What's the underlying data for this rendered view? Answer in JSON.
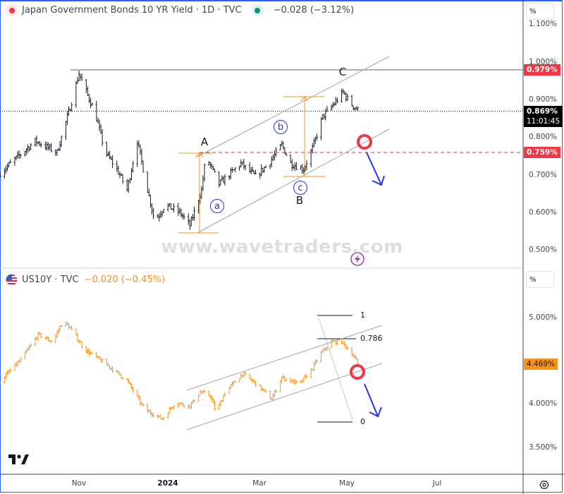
{
  "header": {
    "title": "Japan Government Bonds 10 YR Yield · 1D · TVC",
    "change": "−0.028 (−3.12%)",
    "status_dot_color": "#f23645",
    "market_dot_color": "#089981"
  },
  "lower_header": {
    "title": "US10Y · TVC",
    "change": "−0.020 (−0.45%)",
    "change_color": "#f7931a",
    "icon": "us-flag-icon"
  },
  "price_scale_mode": "%",
  "top_axis": {
    "ticks": [
      "1.100%",
      "1.000%",
      "0.900%",
      "0.800%",
      "0.700%",
      "0.600%",
      "0.500%"
    ],
    "labels": {
      "resistance": "0.979%",
      "last": "0.869%",
      "countdown": "11:01:45",
      "level": "0.759%"
    }
  },
  "bottom_axis": {
    "ticks": [
      "5.000%",
      "4.000%",
      "3.500%"
    ],
    "last": "4.469%"
  },
  "x_axis": {
    "ticks": [
      "Nov",
      "2024",
      "Mar",
      "May",
      "Jul"
    ]
  },
  "annotations": {
    "wave_labels": {
      "A": "A",
      "B": "B",
      "C": "C"
    },
    "sub_waves": {
      "a": "a",
      "b": "b",
      "c": "c"
    },
    "fib": {
      "one": "1",
      "level": "0.786",
      "zero": "0"
    },
    "watermark": "www.wavetraders.com"
  },
  "colors": {
    "accent_orange": "#f7931a",
    "alert_red": "#f23645",
    "arrow_blue": "#2633f5",
    "channel_gray": "#a3a6af"
  },
  "chart_data": [
    {
      "type": "ohlc",
      "title": "Japan Government Bonds 10 YR Yield · 1D · TVC",
      "y_unit": "%",
      "ylim": [
        0.46,
        1.11
      ],
      "anchors": [
        [
          "2023-09-08",
          0.705
        ],
        [
          "2023-10-02",
          0.79
        ],
        [
          "2023-10-17",
          0.76
        ],
        [
          "2023-10-26",
          0.88
        ],
        [
          "2023-11-01",
          0.97
        ],
        [
          "2023-11-05",
          0.93
        ],
        [
          "2023-11-12",
          0.865
        ],
        [
          "2023-11-19",
          0.76
        ],
        [
          "2023-11-27",
          0.715
        ],
        [
          "2023-12-04",
          0.66
        ],
        [
          "2023-12-11",
          0.79
        ],
        [
          "2023-12-18",
          0.66
        ],
        [
          "2023-12-23",
          0.575
        ],
        [
          "2023-12-30",
          0.62
        ],
        [
          "2024-01-09",
          0.6
        ],
        [
          "2024-01-16",
          0.565
        ],
        [
          "2024-01-24",
          0.66
        ],
        [
          "2024-01-27",
          0.75
        ],
        [
          "2024-02-05",
          0.675
        ],
        [
          "2024-02-20",
          0.73
        ],
        [
          "2024-03-01",
          0.695
        ],
        [
          "2024-03-10",
          0.73
        ],
        [
          "2024-03-19",
          0.78
        ],
        [
          "2024-03-25",
          0.73
        ],
        [
          "2024-04-03",
          0.715
        ],
        [
          "2024-04-09",
          0.77
        ],
        [
          "2024-04-16",
          0.855
        ],
        [
          "2024-04-23",
          0.885
        ],
        [
          "2024-04-30",
          0.92
        ],
        [
          "2024-05-05",
          0.89
        ],
        [
          "2024-05-11",
          0.869
        ]
      ]
    },
    {
      "type": "ohlc",
      "title": "US10Y · TVC",
      "y_unit": "%",
      "ylim": [
        3.35,
        5.55
      ],
      "anchors": [
        [
          "2023-09-08",
          4.27
        ],
        [
          "2023-09-22",
          4.51
        ],
        [
          "2023-10-04",
          4.8
        ],
        [
          "2023-10-14",
          4.72
        ],
        [
          "2023-10-21",
          4.96
        ],
        [
          "2023-10-26",
          4.88
        ],
        [
          "2023-11-05",
          4.63
        ],
        [
          "2023-11-19",
          4.47
        ],
        [
          "2023-12-04",
          4.27
        ],
        [
          "2023-12-16",
          3.94
        ],
        [
          "2023-12-28",
          3.83
        ],
        [
          "2024-01-06",
          4.02
        ],
        [
          "2024-01-16",
          3.98
        ],
        [
          "2024-01-23",
          4.14
        ],
        [
          "2024-01-30",
          4.1
        ],
        [
          "2024-02-03",
          3.9
        ],
        [
          "2024-02-09",
          4.14
        ],
        [
          "2024-02-21",
          4.35
        ],
        [
          "2024-03-02",
          4.23
        ],
        [
          "2024-03-12",
          4.06
        ],
        [
          "2024-03-19",
          4.31
        ],
        [
          "2024-03-31",
          4.23
        ],
        [
          "2024-04-08",
          4.39
        ],
        [
          "2024-04-15",
          4.59
        ],
        [
          "2024-04-22",
          4.72
        ],
        [
          "2024-04-29",
          4.72
        ],
        [
          "2024-05-06",
          4.59
        ],
        [
          "2024-05-10",
          4.469
        ]
      ]
    }
  ]
}
